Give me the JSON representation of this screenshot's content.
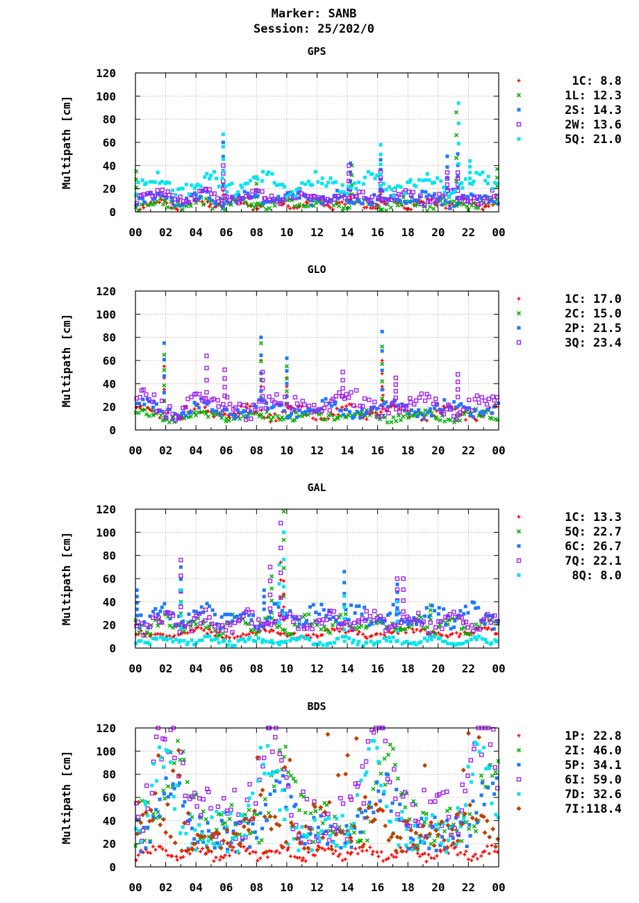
{
  "header": {
    "marker": "Marker: SANB",
    "session": "Session: 25/202/0"
  },
  "colors": {
    "red": "#ff0000",
    "green": "#00b000",
    "blue": "#1e78ff",
    "purple": "#a020f0",
    "cyan": "#00e5ee",
    "brown": "#c04000"
  },
  "chart_data": [
    {
      "type": "scatter",
      "title": "GPS",
      "xlabel": "",
      "ylabel": "Multipath [cm]",
      "ylim": [
        0,
        120
      ],
      "xlim": [
        0,
        24
      ],
      "yticks": [
        "0",
        "20",
        "40",
        "60",
        "80",
        "100",
        "120"
      ],
      "xticks": [
        "00",
        "02",
        "04",
        "06",
        "08",
        "10",
        "12",
        "14",
        "16",
        "18",
        "20",
        "22",
        "00"
      ],
      "grid": true,
      "legend_position": "right",
      "series": [
        {
          "name": "1C",
          "label": "1C:  8.8",
          "color": "#ff0000",
          "marker": "plus",
          "base": 7,
          "amp": 3,
          "noise": 3,
          "spikes": [
            [
              5.8,
              22
            ],
            [
              14.2,
              15
            ],
            [
              16.2,
              18
            ]
          ]
        },
        {
          "name": "1L",
          "label": "1L: 12.3",
          "color": "#00b000",
          "marker": "x",
          "base": 7,
          "amp": 3,
          "noise": 4,
          "spikes": [
            [
              0.05,
              35
            ],
            [
              8.0,
              30
            ],
            [
              14.3,
              40
            ],
            [
              21.2,
              86
            ],
            [
              23.9,
              37
            ]
          ]
        },
        {
          "name": "2S",
          "label": "2S: 14.3",
          "color": "#1e78ff",
          "marker": "square",
          "base": 11,
          "amp": 4,
          "noise": 5,
          "spikes": [
            [
              5.8,
              60
            ],
            [
              14.2,
              42
            ],
            [
              16.2,
              45
            ],
            [
              20.6,
              48
            ],
            [
              21.3,
              50
            ]
          ]
        },
        {
          "name": "2W",
          "label": "2W: 13.6",
          "color": "#a020f0",
          "marker": "opensquare",
          "base": 13,
          "amp": 4,
          "noise": 5,
          "spikes": [
            [
              5.8,
              40
            ],
            [
              14.1,
              40
            ],
            [
              16.2,
              35
            ],
            [
              20.6,
              34
            ],
            [
              21.3,
              34
            ]
          ]
        },
        {
          "name": "5Q",
          "label": "5Q: 21.0",
          "color": "#00e5ee",
          "marker": "square",
          "base": 24,
          "amp": 6,
          "noise": 7,
          "spikes": [
            [
              5.8,
              67
            ],
            [
              16.2,
              58
            ],
            [
              21.35,
              94
            ],
            [
              22.1,
              44
            ]
          ]
        }
      ]
    },
    {
      "type": "scatter",
      "title": "GLO",
      "xlabel": "",
      "ylabel": "Multipath [cm]",
      "ylim": [
        0,
        120
      ],
      "xlim": [
        0,
        24
      ],
      "yticks": [
        "0",
        "20",
        "40",
        "60",
        "80",
        "100",
        "120"
      ],
      "xticks": [
        "00",
        "02",
        "04",
        "06",
        "08",
        "10",
        "12",
        "14",
        "16",
        "18",
        "20",
        "22",
        "00"
      ],
      "grid": true,
      "legend_position": "right",
      "series": [
        {
          "name": "1C",
          "label": "1C: 17.0",
          "color": "#ff0000",
          "marker": "plus",
          "base": 15,
          "amp": 4,
          "noise": 5,
          "spikes": [
            [
              1.9,
              55
            ],
            [
              8.3,
              60
            ],
            [
              10.0,
              45
            ],
            [
              16.3,
              60
            ],
            [
              16.35,
              35
            ]
          ]
        },
        {
          "name": "2C",
          "label": "2C: 15.0",
          "color": "#00b000",
          "marker": "x",
          "base": 12,
          "amp": 3,
          "noise": 4,
          "spikes": [
            [
              1.9,
              65
            ],
            [
              8.3,
              75
            ],
            [
              10.0,
              55
            ],
            [
              16.3,
              72
            ]
          ]
        },
        {
          "name": "2P",
          "label": "2P: 21.5",
          "color": "#1e78ff",
          "marker": "square",
          "base": 18,
          "amp": 5,
          "noise": 6,
          "spikes": [
            [
              1.9,
              75
            ],
            [
              8.3,
              80
            ],
            [
              10.0,
              62
            ],
            [
              16.3,
              85
            ]
          ]
        },
        {
          "name": "3Q",
          "label": "3Q: 23.4",
          "color": "#a020f0",
          "marker": "opensquare",
          "base": 22,
          "amp": 7,
          "noise": 9,
          "spikes": [
            [
              4.7,
              64
            ],
            [
              5.9,
              52
            ],
            [
              8.4,
              50
            ],
            [
              13.7,
              50
            ],
            [
              17.2,
              45
            ],
            [
              21.3,
              48
            ]
          ]
        }
      ]
    },
    {
      "type": "scatter",
      "title": "GAL",
      "xlabel": "",
      "ylabel": "Multipath [cm]",
      "ylim": [
        0,
        120
      ],
      "xlim": [
        0,
        24
      ],
      "yticks": [
        "0",
        "20",
        "40",
        "60",
        "80",
        "100",
        "120"
      ],
      "xticks": [
        "00",
        "02",
        "04",
        "06",
        "08",
        "10",
        "12",
        "14",
        "16",
        "18",
        "20",
        "22",
        "00"
      ],
      "grid": true,
      "legend_position": "right",
      "series": [
        {
          "name": "1C",
          "label": "1C: 13.3",
          "color": "#ff0000",
          "marker": "plus",
          "base": 13,
          "amp": 3,
          "noise": 3,
          "spikes": [
            [
              9.6,
              74
            ],
            [
              9.8,
              58
            ]
          ]
        },
        {
          "name": "5Q",
          "label": "5Q: 22.7",
          "color": "#00b000",
          "marker": "x",
          "base": 20,
          "amp": 5,
          "noise": 6,
          "spikes": [
            [
              3.0,
              60
            ],
            [
              9.0,
              62
            ],
            [
              9.8,
              118
            ],
            [
              19.5,
              37
            ]
          ]
        },
        {
          "name": "6C",
          "label": "6C: 26.7",
          "color": "#1e78ff",
          "marker": "square",
          "base": 28,
          "amp": 6,
          "noise": 8,
          "spikes": [
            [
              0.1,
              50
            ],
            [
              3.0,
              70
            ],
            [
              8.5,
              50
            ],
            [
              13.8,
              66
            ],
            [
              17.3,
              55
            ]
          ]
        },
        {
          "name": "7Q",
          "label": "7Q: 22.1",
          "color": "#a020f0",
          "marker": "opensquare",
          "base": 22,
          "amp": 6,
          "noise": 7,
          "spikes": [
            [
              3.0,
              76
            ],
            [
              8.9,
              70
            ],
            [
              9.6,
              108
            ],
            [
              17.3,
              60
            ],
            [
              17.7,
              60
            ]
          ]
        },
        {
          "name": "8Q",
          "label": "8Q:  8.0",
          "color": "#00e5ee",
          "marker": "square",
          "base": 6,
          "amp": 2,
          "noise": 3,
          "spikes": [
            [
              3.0,
              50
            ],
            [
              9.5,
              72
            ],
            [
              9.8,
              100
            ],
            [
              13.8,
              45
            ],
            [
              17.3,
              40
            ]
          ]
        }
      ]
    },
    {
      "type": "scatter",
      "title": "BDS",
      "xlabel": "",
      "ylabel": "Multipath [cm]",
      "ylim": [
        0,
        120
      ],
      "xlim": [
        0,
        24
      ],
      "yticks": [
        "0",
        "20",
        "40",
        "60",
        "80",
        "100",
        "120"
      ],
      "xticks": [
        "00",
        "02",
        "04",
        "06",
        "08",
        "10",
        "12",
        "14",
        "16",
        "18",
        "20",
        "22",
        "00"
      ],
      "grid": true,
      "legend_position": "right",
      "series": [
        {
          "name": "1P",
          "label": "1P: 22.8",
          "color": "#ff0000",
          "marker": "plus",
          "base": 12,
          "amp": 4,
          "noise": 5,
          "spikes": []
        },
        {
          "name": "2I",
          "label": "2I: 46.0",
          "color": "#00b000",
          "marker": "x",
          "base": 38,
          "amp": 25,
          "noise": 25,
          "spikes": []
        },
        {
          "name": "5P",
          "label": "5P: 34.1",
          "color": "#1e78ff",
          "marker": "square",
          "base": 28,
          "amp": 20,
          "noise": 20,
          "spikes": []
        },
        {
          "name": "6I",
          "label": "6I: 59.0",
          "color": "#a020f0",
          "marker": "opensquare",
          "base": 45,
          "amp": 35,
          "noise": 30,
          "spikes": []
        },
        {
          "name": "7D",
          "label": "7D: 32.6",
          "color": "#00e5ee",
          "marker": "square",
          "base": 28,
          "amp": 30,
          "noise": 22,
          "spikes": []
        },
        {
          "name": "7I",
          "label": "7I:118.4",
          "color": "#c04000",
          "marker": "diamond",
          "base": 25,
          "amp": 12,
          "noise": 18,
          "spikes": []
        }
      ]
    }
  ]
}
